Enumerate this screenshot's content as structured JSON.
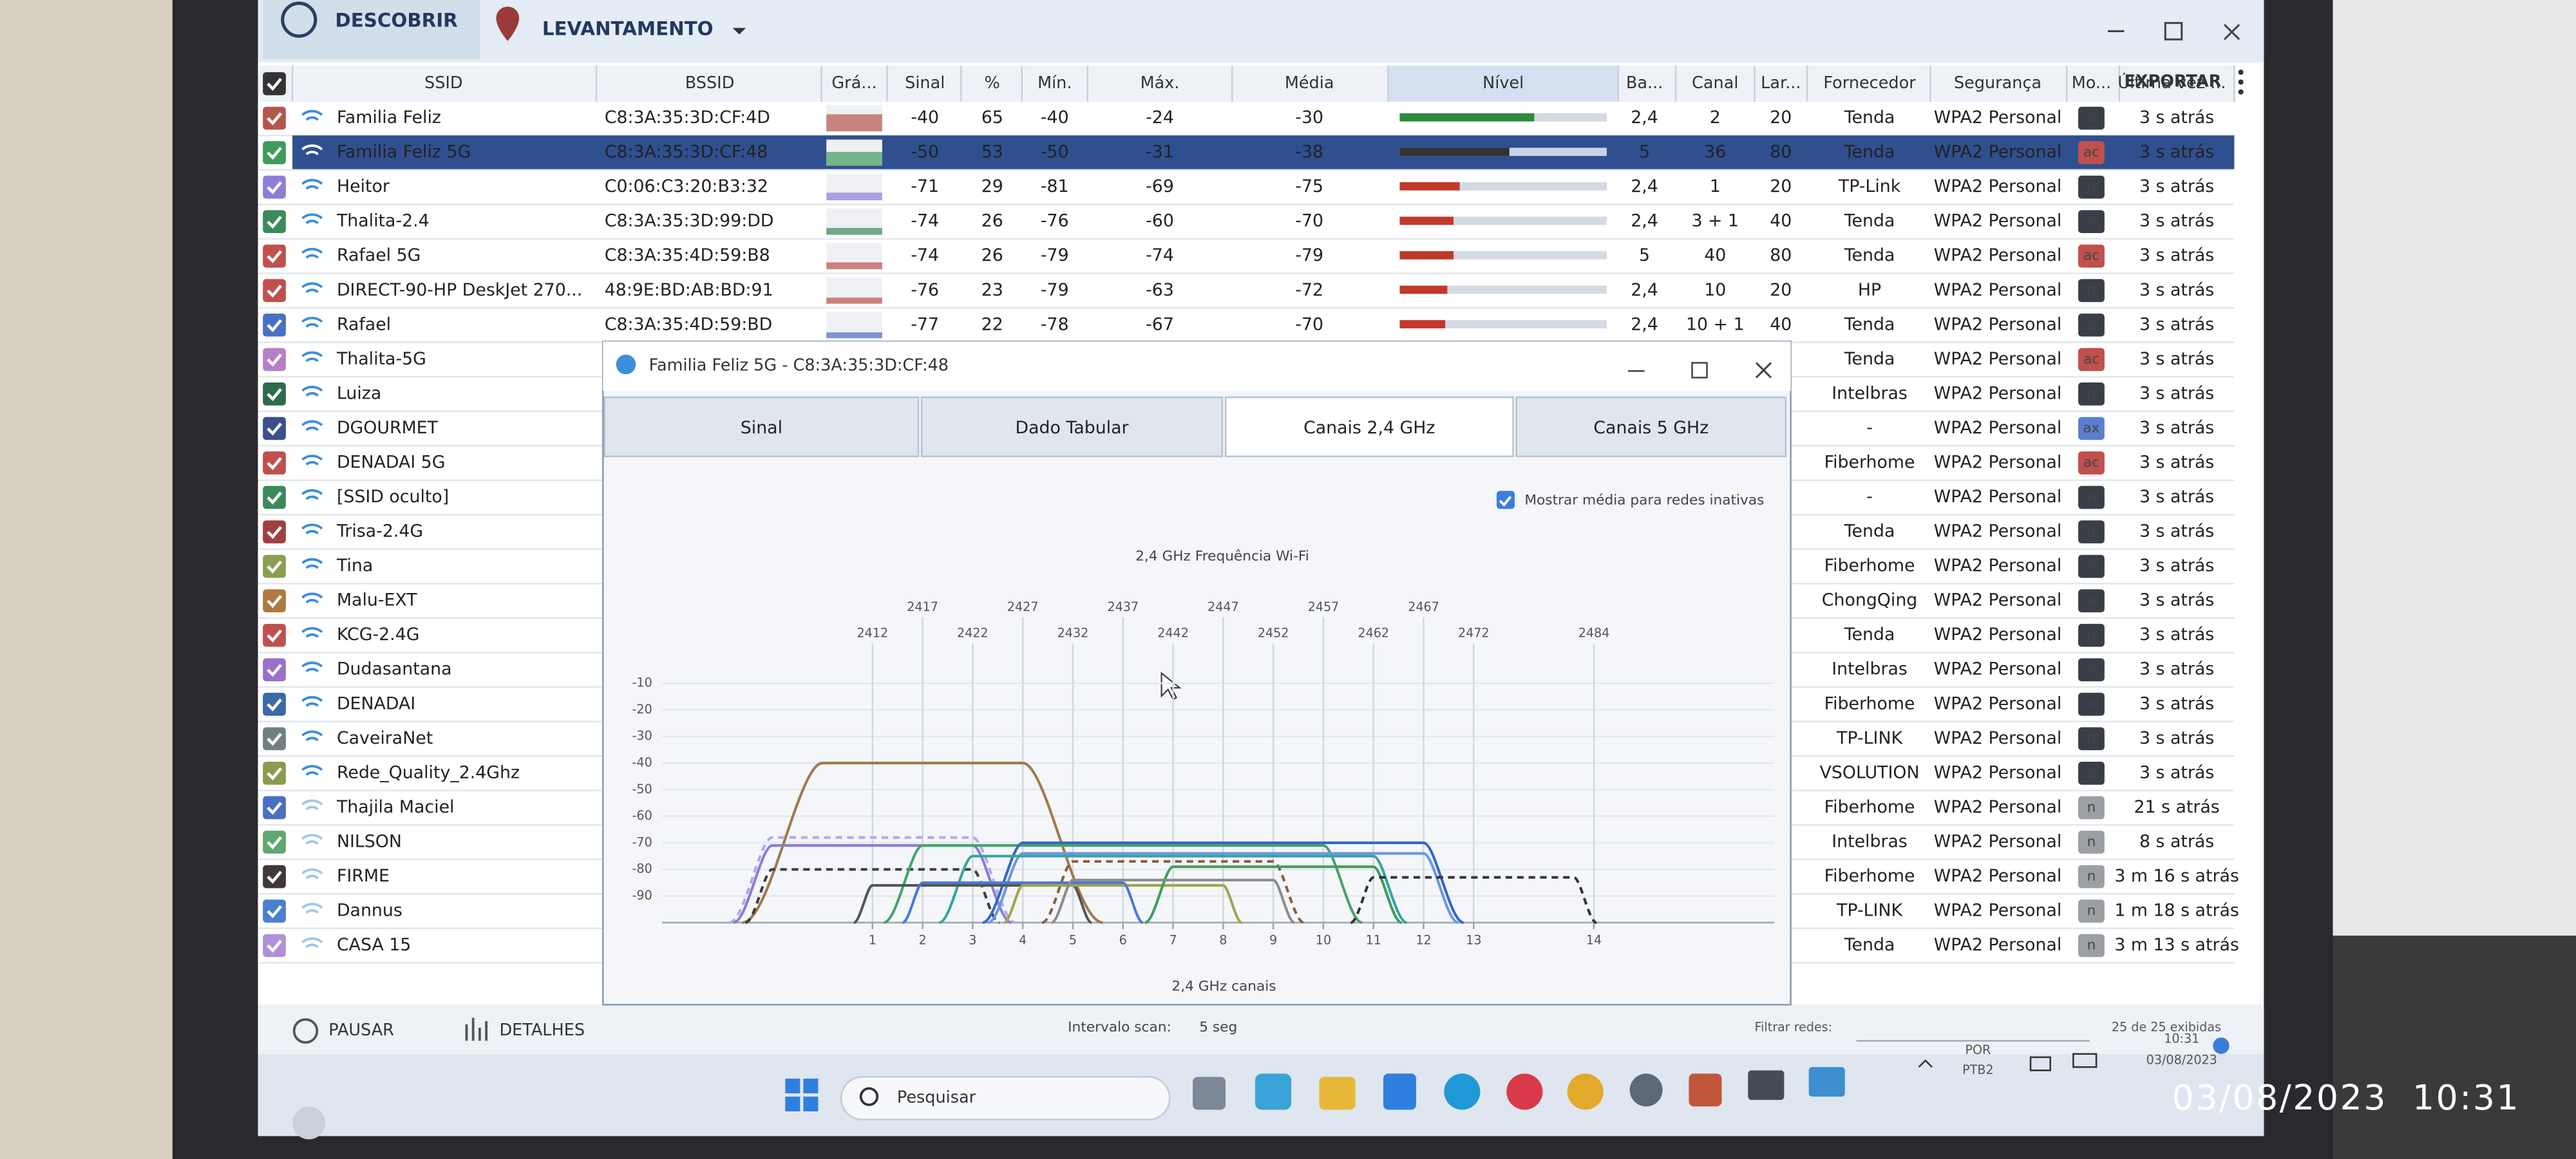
{
  "toolbar": {
    "discover": "DESCOBRIR",
    "survey": "LEVANTAMENTO",
    "export": "EXPORTAR"
  },
  "table": {
    "headers": [
      "SSID",
      "BSSID",
      "Grá...",
      "Sinal",
      "%",
      "Mín.",
      "Máx.",
      "Média",
      "Nível",
      "Ba...",
      "Canal",
      "Lar...",
      "Fornecedor",
      "Segurança",
      "Mo...",
      "Última vez ..."
    ],
    "selected_row": 1,
    "rows": [
      {
        "ssid": "Familia Feliz",
        "bssid": "C8:3A:35:3D:CF:4D",
        "signal": -40,
        "percent": 65,
        "min": -40,
        "max": -24,
        "avg": -30,
        "band": "2,4",
        "channel": 2,
        "width": 20,
        "vendor": "Tenda",
        "security": "WPA2 Personal",
        "mode": "n",
        "last_seen": "3 s atrás",
        "color": "#b3574b"
      },
      {
        "ssid": "Familia Feliz 5G",
        "bssid": "C8:3A:35:3D:CF:48",
        "signal": -50,
        "percent": 53,
        "min": -50,
        "max": -31,
        "avg": -38,
        "band": "5",
        "channel": 36,
        "width": 80,
        "vendor": "Tenda",
        "security": "WPA2 Personal",
        "mode": "ac",
        "last_seen": "3 s atrás",
        "color": "#3f9a5a"
      },
      {
        "ssid": "Heitor",
        "bssid": "C0:06:C3:20:B3:32",
        "signal": -71,
        "percent": 29,
        "min": -81,
        "max": -69,
        "avg": -75,
        "band": "2,4",
        "channel": 1,
        "width": 20,
        "vendor": "TP-Link",
        "security": "WPA2 Personal",
        "mode": "n",
        "last_seen": "3 s atrás",
        "color": "#8c7fd8"
      },
      {
        "ssid": "Thalita-2.4",
        "bssid": "C8:3A:35:3D:99:DD",
        "signal": -74,
        "percent": 26,
        "min": -76,
        "max": -60,
        "avg": -70,
        "band": "2,4",
        "channel": "3 + 1",
        "width": 40,
        "vendor": "Tenda",
        "security": "WPA2 Personal",
        "mode": "n",
        "last_seen": "3 s atrás",
        "color": "#3c8a5a"
      },
      {
        "ssid": "Rafael 5G",
        "bssid": "C8:3A:35:4D:59:B8",
        "signal": -74,
        "percent": 26,
        "min": -79,
        "max": -74,
        "avg": -79,
        "band": "5",
        "channel": 40,
        "width": 80,
        "vendor": "Tenda",
        "security": "WPA2 Personal",
        "mode": "ac",
        "last_seen": "3 s atrás",
        "color": "#c0504d"
      },
      {
        "ssid": "DIRECT-90-HP DeskJet 270...",
        "bssid": "48:9E:BD:AB:BD:91",
        "signal": -76,
        "percent": 23,
        "min": -79,
        "max": -63,
        "avg": -72,
        "band": "2,4",
        "channel": 10,
        "width": 20,
        "vendor": "HP",
        "security": "WPA2 Personal",
        "mode": "n",
        "last_seen": "3 s atrás",
        "color": "#c0504d"
      },
      {
        "ssid": "Rafael",
        "bssid": "C8:3A:35:4D:59:BD",
        "signal": -77,
        "percent": 22,
        "min": -78,
        "max": -67,
        "avg": -70,
        "band": "2,4",
        "channel": "10 + 1",
        "width": 40,
        "vendor": "Tenda",
        "security": "WPA2 Personal",
        "mode": "n",
        "last_seen": "3 s atrás",
        "color": "#4b6fc4"
      },
      {
        "ssid": "Thalita-5G",
        "vendor": "Tenda",
        "security": "WPA2 Personal",
        "mode": "ac",
        "last_seen": "3 s atrás",
        "color": "#b57fc4"
      },
      {
        "ssid": "Luiza",
        "vendor": "Intelbras",
        "security": "WPA2 Personal",
        "mode": "n",
        "last_seen": "3 s atrás",
        "color": "#2e6b4a"
      },
      {
        "ssid": "DGOURMET",
        "vendor": "-",
        "security": "WPA2 Personal",
        "mode": "ax",
        "last_seen": "3 s atrás",
        "color": "#3b4f8a"
      },
      {
        "ssid": "DENADAI 5G",
        "vendor": "Fiberhome",
        "security": "WPA2 Personal",
        "mode": "ac",
        "last_seen": "3 s atrás",
        "color": "#c0504d"
      },
      {
        "ssid": "[SSID oculto]",
        "vendor": "-",
        "security": "WPA2 Personal",
        "mode": "n",
        "last_seen": "3 s atrás",
        "color": "#3a8a5a"
      },
      {
        "ssid": "Trisa-2.4G",
        "vendor": "Tenda",
        "security": "WPA2 Personal",
        "mode": "n",
        "last_seen": "3 s atrás",
        "color": "#a04040"
      },
      {
        "ssid": "Tina",
        "vendor": "Fiberhome",
        "security": "WPA2 Personal",
        "mode": "n",
        "last_seen": "3 s atrás",
        "color": "#8aa050"
      },
      {
        "ssid": "Malu-EXT",
        "vendor": "ChongQing",
        "security": "WPA2 Personal",
        "mode": "n",
        "last_seen": "3 s atrás",
        "color": "#b07a40"
      },
      {
        "ssid": "KCG-2.4G",
        "vendor": "Tenda",
        "security": "WPA2 Personal",
        "mode": "n",
        "last_seen": "3 s atrás",
        "color": "#c05050"
      },
      {
        "ssid": "Dudasantana",
        "vendor": "Intelbras",
        "security": "WPA2 Personal",
        "mode": "n",
        "last_seen": "3 s atrás",
        "color": "#9a70c8"
      },
      {
        "ssid": "DENADAI",
        "vendor": "Fiberhome",
        "security": "WPA2 Personal",
        "mode": "n",
        "last_seen": "3 s atrás",
        "color": "#3a6aa8"
      },
      {
        "ssid": "CaveiraNet",
        "vendor": "TP-LINK",
        "security": "WPA2 Personal",
        "mode": "n",
        "last_seen": "3 s atrás",
        "color": "#708080"
      },
      {
        "ssid": "Rede_Quality_2.4Ghz",
        "vendor": "VSOLUTION",
        "security": "WPA2 Personal",
        "mode": "n",
        "last_seen": "3 s atrás",
        "color": "#8a9a50"
      },
      {
        "ssid": "Thajila Maciel",
        "vendor": "Fiberhome",
        "security": "WPA2 Personal",
        "mode": "n",
        "last_seen": "21 s atrás",
        "color": "#4a70c0",
        "inactive": true
      },
      {
        "ssid": "NILSON",
        "vendor": "Intelbras",
        "security": "WPA2 Personal",
        "mode": "n",
        "last_seen": "8 s atrás",
        "color": "#60a870",
        "inactive": true
      },
      {
        "ssid": "FIRME",
        "vendor": "Fiberhome",
        "security": "WPA2 Personal",
        "mode": "n",
        "last_seen": "3 m 16 s atrás",
        "color": "#403838",
        "inactive": true
      },
      {
        "ssid": "Dannus",
        "vendor": "TP-LINK",
        "security": "WPA2 Personal",
        "mode": "n",
        "last_seen": "1 m 18 s atrás",
        "color": "#4a80d0",
        "inactive": true
      },
      {
        "ssid": "CASA 15",
        "vendor": "Tenda",
        "security": "WPA2 Personal",
        "mode": "n",
        "last_seen": "3 m 13 s atrás",
        "color": "#b090d8",
        "inactive": true
      }
    ]
  },
  "dialog": {
    "title": "Familia Feliz 5G - C8:3A:35:3D:CF:48",
    "tabs": [
      "Sinal",
      "Dado Tabular",
      "Canais 2,4 GHz",
      "Canais 5 GHz"
    ],
    "active_tab": 2,
    "checkbox": "Mostrar média para redes inativas"
  },
  "chart_data": {
    "type": "channel",
    "title": "2,4 GHz Frequência Wi-Fi",
    "x_label": "2,4 GHz canais",
    "xlim": [
      2391,
      2502
    ],
    "ylim": [
      -100,
      0
    ],
    "yticks": [
      -10,
      -20,
      -30,
      -40,
      -50,
      -60,
      -70,
      -80,
      -90
    ],
    "xticks": [
      {
        "value": 2412,
        "label": "1"
      },
      {
        "value": 2417,
        "label": "2"
      },
      {
        "value": 2422,
        "label": "3"
      },
      {
        "value": 2427,
        "label": "4"
      },
      {
        "value": 2432,
        "label": "5"
      },
      {
        "value": 2437,
        "label": "6"
      },
      {
        "value": 2442,
        "label": "7"
      },
      {
        "value": 2447,
        "label": "8"
      },
      {
        "value": 2452,
        "label": "9"
      },
      {
        "value": 2457,
        "label": "10"
      },
      {
        "value": 2462,
        "label": "11"
      },
      {
        "value": 2467,
        "label": "12"
      },
      {
        "value": 2472,
        "label": "13"
      },
      {
        "value": 2484,
        "label": "14"
      }
    ],
    "x2ticks": [
      2412,
      2417,
      2422,
      2427,
      2432,
      2437,
      2442,
      2447,
      2452,
      2457,
      2462,
      2467,
      2472,
      2484
    ],
    "grid": true,
    "series": [
      {
        "color": "#a07a4c",
        "center": 2417,
        "width": 20,
        "value": -40
      },
      {
        "color": "#b3a8ee",
        "center": 2412,
        "width": 20,
        "value": -68,
        "dashed": true
      },
      {
        "color": "#8a7cd6",
        "center": 2412,
        "width": 20,
        "value": -71
      },
      {
        "color": "#3d3d3d",
        "center": 2412,
        "width": 20,
        "value": -80,
        "dashed": true
      },
      {
        "color": "#45a36a",
        "center": 2437,
        "width": 40,
        "value": -71
      },
      {
        "color": "#3566d0",
        "center": 2447,
        "width": 40,
        "value": -70
      },
      {
        "color": "#6d95e6",
        "center": 2447,
        "width": 40,
        "value": -74
      },
      {
        "color": "#35a3a0",
        "center": 2442,
        "width": 40,
        "value": -75
      },
      {
        "color": "#555555",
        "center": 2422,
        "width": 20,
        "value": -86
      },
      {
        "color": "#a3a34a",
        "center": 2437,
        "width": 20,
        "value": -86
      },
      {
        "color": "#8b5e3c",
        "center": 2442,
        "width": 20,
        "value": -77,
        "dashed": true
      },
      {
        "color": "#3f9e5a",
        "center": 2452,
        "width": 20,
        "value": -79
      },
      {
        "color": "#333333",
        "center": 2472,
        "width": 20,
        "value": -83,
        "dashed": true
      },
      {
        "color": "#4a7ad8",
        "center": 2427,
        "width": 20,
        "value": -85
      },
      {
        "color": "#8c8c8c",
        "center": 2442,
        "width": 20,
        "value": -84
      }
    ]
  },
  "footer": {
    "pause": "PAUSAR",
    "details": "DETALHES",
    "interval_label": "Intervalo scan:",
    "interval": "5 seg",
    "filter_label": "Filtrar redes:",
    "count": "25 de 25 exibidas"
  },
  "taskbar": {
    "search": "Pesquisar",
    "lang": "POR",
    "layout": "PTB2",
    "time": "10:31",
    "date": "03/08/2023"
  },
  "photo_stamp": "03/08/2023  10:31"
}
